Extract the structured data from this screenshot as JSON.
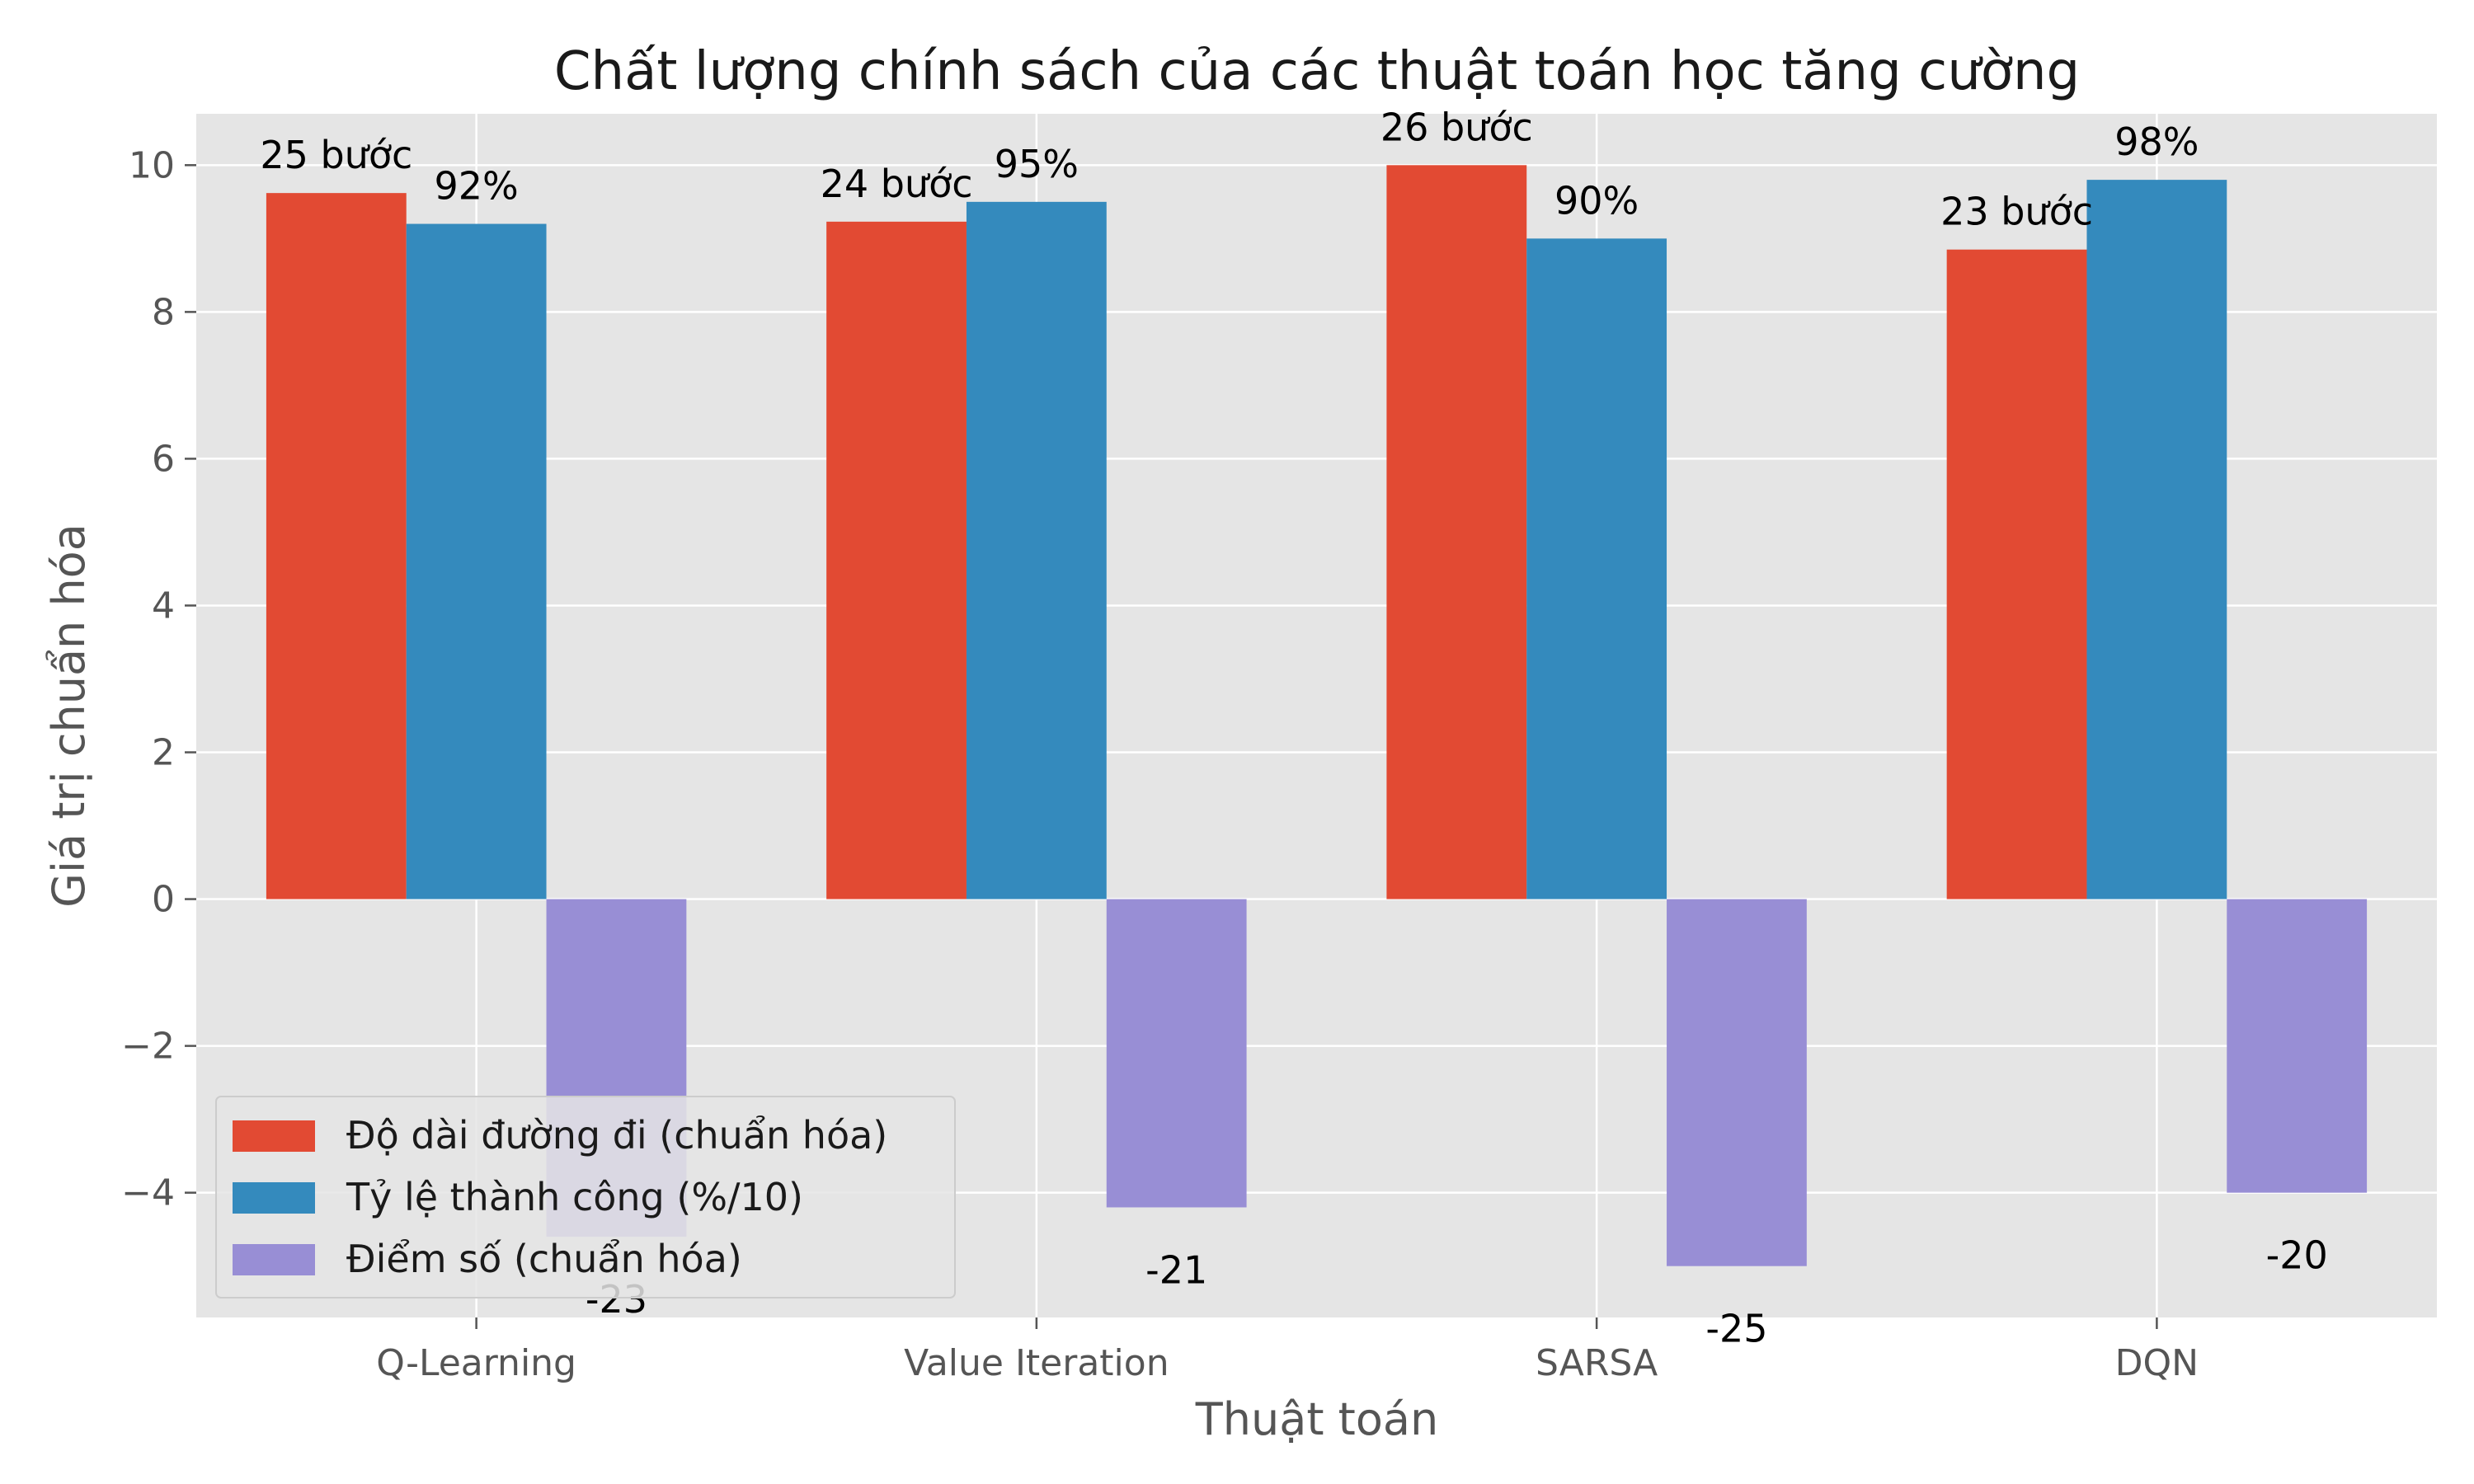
{
  "chart_data": {
    "type": "bar",
    "title": "Chất lượng chính sách của các thuật toán học tăng cường",
    "xlabel": "Thuật toán",
    "ylabel": "Giá trị chuẩn hóa",
    "categories": [
      "Q-Learning",
      "Value Iteration",
      "SARSA",
      "DQN"
    ],
    "ylim": [
      -5.7,
      10.7
    ],
    "yticks": [
      -4,
      -2,
      0,
      2,
      4,
      6,
      8,
      10
    ],
    "ytick_labels": [
      "−4",
      "−2",
      "0",
      "2",
      "4",
      "6",
      "8",
      "10"
    ],
    "grid": true,
    "legend_position": "bottom-left",
    "series": [
      {
        "name": "Độ dài đường đi (chuẩn hóa)",
        "color": "#E24A33",
        "values": [
          9.62,
          9.23,
          10.0,
          8.85
        ],
        "labels": [
          "25 bước",
          "24 bước",
          "26 bước",
          "23 bước"
        ]
      },
      {
        "name": "Tỷ lệ thành công (%/10)",
        "color": "#348ABD",
        "values": [
          9.2,
          9.5,
          9.0,
          9.8
        ],
        "labels": [
          "92%",
          "95%",
          "90%",
          "98%"
        ]
      },
      {
        "name": "Điểm số (chuẩn hóa)",
        "color": "#988ED5",
        "values": [
          -4.6,
          -4.2,
          -5.0,
          -4.0
        ],
        "labels": [
          "-23",
          "-21",
          "-25",
          "-20"
        ]
      }
    ]
  }
}
